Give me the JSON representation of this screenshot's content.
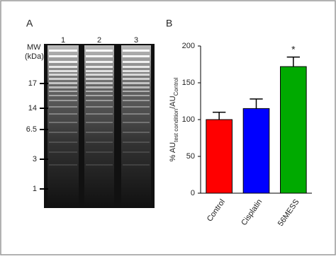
{
  "panels": {
    "a": "A",
    "b": "B"
  },
  "gel": {
    "lanes": [
      "1",
      "2",
      "3"
    ],
    "mw_label": [
      "MW",
      "(kDa)"
    ],
    "markers": [
      17,
      14,
      6.5,
      3,
      1
    ]
  },
  "chart_data": {
    "type": "bar",
    "ylabel": [
      {
        "text": "% AU"
      },
      {
        "text": "test condition",
        "subscript": true
      },
      {
        "text": "/AU"
      },
      {
        "text": "Control",
        "subscript": true
      }
    ],
    "categories": [
      "Control",
      "Cisplatin",
      "56MESS"
    ],
    "values": [
      100,
      115,
      172
    ],
    "errors": [
      10,
      13,
      13
    ],
    "colors": [
      "#ff0000",
      "#0000ff",
      "#00aa00"
    ],
    "annotations": [
      {
        "text": "*",
        "category": 2
      }
    ],
    "ylim": [
      0,
      200
    ],
    "yticks": [
      0,
      50,
      100,
      150,
      200
    ],
    "grid": false
  }
}
